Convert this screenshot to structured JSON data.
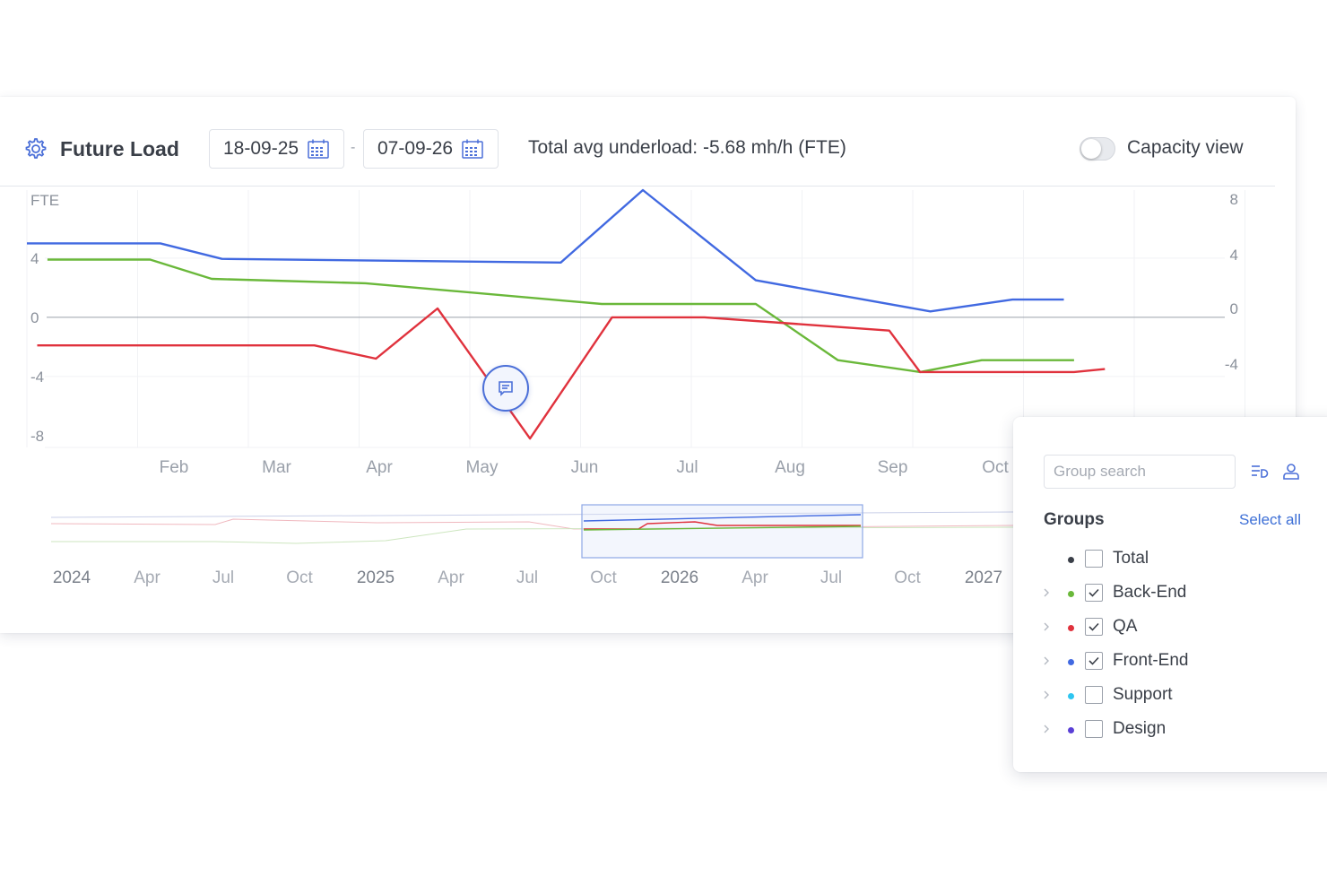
{
  "toolbar": {
    "title": "Future Load",
    "start_date": "18-09-25",
    "end_date": "07-09-26",
    "date_separator": "-",
    "underload_text": "Total avg underload: -5.68 mh/h (FTE)",
    "capacity_view_label": "Capacity view",
    "capacity_view_on": false,
    "icons": [
      "gear-icon",
      "calendar-icon",
      "toggle-switch"
    ]
  },
  "chart_data": {
    "type": "line",
    "ylabel": "FTE",
    "y_ticks_left": [
      "4",
      "0",
      "-4",
      "-8"
    ],
    "y_ticks_right": [
      "8",
      "4",
      "0",
      "-4"
    ],
    "x_ticks": [
      "Feb",
      "Mar",
      "Apr",
      "May",
      "Jun",
      "Jul",
      "Aug",
      "Sep",
      "Oct"
    ],
    "ylim": [
      -8.8,
      8.6
    ],
    "grid": true,
    "series": [
      {
        "name": "Front-End",
        "color": "#4169e1",
        "points": [
          [
            0.0,
            5.0
          ],
          [
            1.3,
            5.0
          ],
          [
            1.9,
            3.95
          ],
          [
            5.2,
            3.7
          ],
          [
            6.0,
            8.6
          ],
          [
            7.1,
            2.5
          ],
          [
            8.8,
            0.4
          ],
          [
            9.6,
            1.2
          ],
          [
            10.1,
            1.2
          ]
        ]
      },
      {
        "name": "Back-End",
        "color": "#6ab83a",
        "points": [
          [
            0.2,
            3.9
          ],
          [
            1.2,
            3.9
          ],
          [
            1.8,
            2.6
          ],
          [
            3.3,
            2.3
          ],
          [
            5.6,
            0.9
          ],
          [
            7.1,
            0.9
          ],
          [
            7.9,
            -2.9
          ],
          [
            8.7,
            -3.7
          ],
          [
            9.3,
            -2.9
          ],
          [
            10.2,
            -2.9
          ]
        ]
      },
      {
        "name": "QA",
        "color": "#e0323d",
        "points": [
          [
            0.1,
            -1.9
          ],
          [
            2.8,
            -1.9
          ],
          [
            3.4,
            -2.8
          ],
          [
            4.0,
            0.6
          ],
          [
            4.9,
            -8.2
          ],
          [
            5.7,
            0.0
          ],
          [
            6.6,
            0.0
          ],
          [
            8.4,
            -0.9
          ],
          [
            8.7,
            -3.7
          ],
          [
            10.2,
            -3.7
          ],
          [
            10.5,
            -3.5
          ]
        ]
      }
    ]
  },
  "overview": {
    "x_ticks": [
      "2024",
      "Apr",
      "Jul",
      "Oct",
      "2025",
      "Apr",
      "Jul",
      "Oct",
      "2026",
      "Apr",
      "Jul",
      "Oct",
      "2027"
    ]
  },
  "comment_button": {
    "icon": "comment-icon"
  },
  "groups_panel": {
    "search_placeholder": "Group search",
    "title": "Groups",
    "select_all_label": "Select all",
    "icons": [
      "sort-icon",
      "user-icon"
    ],
    "items": [
      {
        "label": "Total",
        "color": "#3a3f48",
        "checked": false,
        "expandable": false
      },
      {
        "label": "Back-End",
        "color": "#6ab83a",
        "checked": true,
        "expandable": true
      },
      {
        "label": "QA",
        "color": "#e0323d",
        "checked": true,
        "expandable": true
      },
      {
        "label": "Front-End",
        "color": "#4169e1",
        "checked": true,
        "expandable": true
      },
      {
        "label": "Support",
        "color": "#2ec5f0",
        "checked": false,
        "expandable": true
      },
      {
        "label": "Design",
        "color": "#5a3fd6",
        "checked": false,
        "expandable": true
      }
    ]
  }
}
